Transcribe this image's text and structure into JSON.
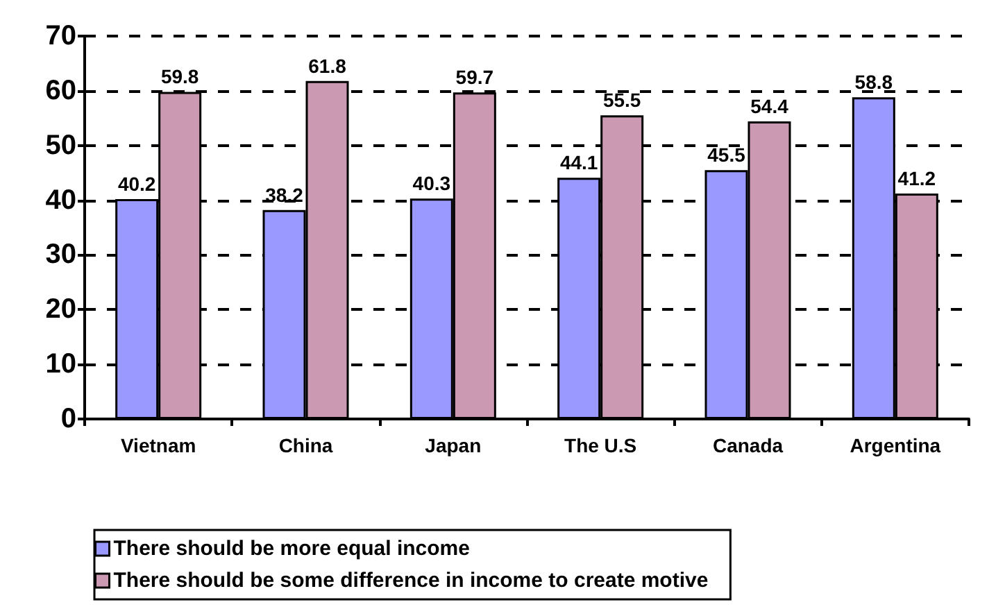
{
  "chart_data": {
    "type": "bar",
    "categories": [
      "Vietnam",
      "China",
      "Japan",
      "The U.S",
      "Canada",
      "Argentina"
    ],
    "series": [
      {
        "name": "There should be more equal income",
        "color": "#9999ff",
        "values": [
          40.2,
          38.2,
          40.3,
          44.1,
          45.5,
          58.8
        ]
      },
      {
        "name": "There should be some difference in income to create motive",
        "color": "#cc99b3",
        "values": [
          59.8,
          61.8,
          59.7,
          55.5,
          54.4,
          41.2
        ]
      }
    ],
    "ylim": [
      0,
      70
    ],
    "yticks": [
      0,
      10,
      20,
      30,
      40,
      50,
      60,
      70
    ],
    "grid": "y",
    "legend": "bottom",
    "data_labels": true
  }
}
